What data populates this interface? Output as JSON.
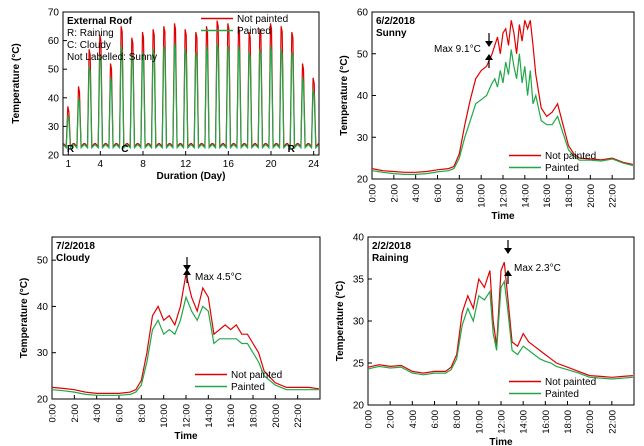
{
  "colors": {
    "not_painted": "#e00000",
    "painted": "#20a848",
    "axis": "#000000"
  },
  "chart_data": [
    {
      "id": "external-roof",
      "type": "line",
      "title": "External Roof",
      "subtitle_lines": [
        "R: Raining",
        "C: Cloudy",
        "Not Labelled: Sunny"
      ],
      "xlabel": "Duration (Day)",
      "ylabel": "Temperature (°C)",
      "xlim": [
        0.5,
        24.5
      ],
      "ylim": [
        20,
        70
      ],
      "xticks": [
        1,
        4,
        8,
        12,
        16,
        20,
        24
      ],
      "yticks": [
        20,
        30,
        40,
        50,
        60,
        70
      ],
      "legend": "top-right",
      "day_marks": [
        {
          "day": 1.2,
          "label": "R"
        },
        {
          "day": 6.3,
          "label": "C"
        },
        {
          "day": 21.9,
          "label": "R"
        }
      ],
      "daily_peaks": {
        "not_painted": [
          37,
          44,
          57,
          62,
          52,
          65,
          61,
          63,
          64,
          65,
          66,
          64,
          63,
          65,
          67,
          66,
          65,
          63,
          64,
          66,
          65,
          63,
          52,
          47
        ],
        "painted": [
          34,
          40,
          51,
          55,
          47,
          58,
          55,
          56,
          57,
          58,
          59,
          57,
          56,
          58,
          59,
          58,
          58,
          56,
          57,
          58,
          57,
          56,
          47,
          43
        ]
      },
      "night_min": 23,
      "series": [
        {
          "name": "Not painted",
          "color_key": "not_painted"
        },
        {
          "name": "Painted",
          "color_key": "painted"
        }
      ]
    },
    {
      "id": "sunny-6-2-2018",
      "type": "line",
      "title": "6/2/2018",
      "subtitle": "Sunny",
      "xlabel": "Time",
      "ylabel": "Temperature (°C)",
      "ylim": [
        20,
        60
      ],
      "yticks": [
        20,
        30,
        40,
        50,
        60
      ],
      "xticks": [
        "0:00",
        "2:00",
        "4:00",
        "6:00",
        "8:00",
        "10:00",
        "12:00",
        "14:00",
        "16:00",
        "18:00",
        "20:00",
        "22:00"
      ],
      "annotation": "Max 9.1°C",
      "legend": "bottom-right",
      "series": [
        {
          "name": "Not painted",
          "color_key": "not_painted",
          "x": [
            0,
            1,
            2,
            3,
            4,
            5,
            6,
            7,
            7.5,
            8,
            8.5,
            9,
            9.5,
            10,
            10.5,
            11,
            11.25,
            11.5,
            11.75,
            12,
            12.25,
            12.5,
            12.75,
            13,
            13.25,
            13.5,
            13.75,
            14,
            14.25,
            14.5,
            14.75,
            15,
            15.5,
            16,
            16.5,
            17,
            17.5,
            18,
            18.5,
            19,
            20,
            21,
            22,
            23,
            23.9
          ],
          "y": [
            22.5,
            22,
            21.8,
            21.6,
            21.6,
            21.8,
            22.2,
            22.5,
            23,
            26,
            33,
            39,
            44,
            46,
            47,
            50,
            52,
            54,
            50,
            55,
            56,
            52,
            58,
            55,
            50,
            57,
            53,
            58,
            56,
            58,
            52,
            45,
            37,
            35,
            36,
            38,
            33,
            28,
            26,
            25,
            24.8,
            24.6,
            25,
            24,
            23.5
          ]
        },
        {
          "name": "Painted",
          "color_key": "painted",
          "x": [
            0,
            1,
            2,
            3,
            4,
            5,
            6,
            7,
            7.5,
            8,
            8.5,
            9,
            9.5,
            10,
            10.5,
            11,
            11.25,
            11.5,
            11.75,
            12,
            12.25,
            12.5,
            12.75,
            13,
            13.25,
            13.5,
            13.75,
            14,
            14.25,
            14.5,
            14.75,
            15,
            15.5,
            16,
            16.5,
            17,
            17.5,
            18,
            18.5,
            19,
            20,
            21,
            22,
            23,
            23.9
          ],
          "y": [
            22,
            21.6,
            21.3,
            21.1,
            21.1,
            21.3,
            21.7,
            22,
            22.5,
            25,
            30,
            34,
            38,
            39,
            40,
            43,
            44,
            42,
            46,
            43,
            48,
            45,
            51,
            47,
            44,
            50,
            43,
            47,
            40,
            46,
            38,
            40,
            34,
            33,
            33,
            35,
            31,
            27,
            25.5,
            24.5,
            24.5,
            24.3,
            24.8,
            23.8,
            23.2
          ]
        }
      ]
    },
    {
      "id": "cloudy-7-2-2018",
      "type": "line",
      "title": "7/2/2018",
      "subtitle": "Cloudy",
      "xlabel": "Time",
      "ylabel": "Temperature (°C)",
      "ylim": [
        20,
        55
      ],
      "yticks": [
        20,
        30,
        40,
        50
      ],
      "xticks": [
        "0:00",
        "2:00",
        "4:00",
        "6:00",
        "8:00",
        "10:00",
        "12:00",
        "14:00",
        "16:00",
        "18:00",
        "20:00",
        "22:00"
      ],
      "annotation": "Max 4.5°C",
      "legend": "bottom-right",
      "series": [
        {
          "name": "Not painted",
          "color_key": "not_painted",
          "x": [
            0,
            1,
            2,
            3,
            4,
            5,
            6,
            7,
            7.5,
            8,
            8.5,
            9,
            9.5,
            10,
            10.5,
            11,
            11.5,
            12,
            12.5,
            13,
            13.5,
            14,
            14.5,
            15,
            15.5,
            16,
            16.5,
            17,
            17.5,
            18,
            18.5,
            19,
            20,
            21,
            22,
            23,
            23.9
          ],
          "y": [
            22.5,
            22.3,
            22,
            21.5,
            21.2,
            21.2,
            21.2,
            21.5,
            22,
            24,
            30,
            38,
            40,
            37,
            38,
            36,
            40,
            47,
            42,
            39,
            44,
            42,
            34,
            35,
            36,
            35,
            36,
            34,
            34,
            32,
            30,
            26,
            23.5,
            22.5,
            22.5,
            22.5,
            22.2
          ]
        },
        {
          "name": "Painted",
          "color_key": "painted",
          "x": [
            0,
            1,
            2,
            3,
            4,
            5,
            6,
            7,
            7.5,
            8,
            8.5,
            9,
            9.5,
            10,
            10.5,
            11,
            11.5,
            12,
            12.5,
            13,
            13.5,
            14,
            14.5,
            15,
            15.5,
            16,
            16.5,
            17,
            17.5,
            18,
            18.5,
            19,
            20,
            21,
            22,
            23,
            23.9
          ],
          "y": [
            22,
            21.8,
            21.5,
            21,
            20.8,
            20.8,
            20.8,
            21,
            21.5,
            23,
            28,
            35,
            37,
            34,
            35,
            34,
            37,
            42,
            39,
            37,
            40,
            39,
            32,
            33,
            33,
            33,
            33,
            32,
            32,
            30,
            28,
            25,
            23,
            22,
            22,
            22,
            22
          ]
        }
      ]
    },
    {
      "id": "raining-2-2-2018",
      "type": "line",
      "title": "2/2/2018",
      "subtitle": "Raining",
      "xlabel": "Time",
      "ylabel": "Temperature (°C)",
      "ylim": [
        20,
        40
      ],
      "yticks": [
        20,
        25,
        30,
        35,
        40
      ],
      "xticks": [
        "0:00",
        "2:00",
        "4:00",
        "6:00",
        "8:00",
        "10:00",
        "12:00",
        "14:00",
        "16:00",
        "18:00",
        "20:00",
        "22:00"
      ],
      "annotation": "Max 2.3°C",
      "legend": "bottom-right",
      "series": [
        {
          "name": "Not painted",
          "color_key": "not_painted",
          "x": [
            0,
            1,
            2,
            3,
            4,
            5,
            6,
            7,
            7.5,
            8,
            8.5,
            9,
            9.5,
            10,
            10.5,
            11,
            11.3,
            11.6,
            12,
            12.3,
            12.6,
            13,
            13.5,
            14,
            14.5,
            15,
            15.5,
            16,
            16.5,
            17,
            18,
            19,
            20,
            21,
            22,
            23,
            23.9
          ],
          "y": [
            24.5,
            24.8,
            24.6,
            24.7,
            24,
            23.8,
            24,
            24,
            24.5,
            26,
            31,
            33,
            31.5,
            35,
            34,
            36,
            30,
            27,
            36,
            37,
            33,
            27.5,
            27,
            28.5,
            27.5,
            27,
            26.5,
            26,
            25.5,
            25,
            24.5,
            24,
            23.5,
            23.4,
            23.3,
            23.4,
            23.5
          ]
        },
        {
          "name": "Painted",
          "color_key": "painted",
          "x": [
            0,
            1,
            2,
            3,
            4,
            5,
            6,
            7,
            7.5,
            8,
            8.5,
            9,
            9.5,
            10,
            10.5,
            11,
            11.3,
            11.6,
            12,
            12.3,
            12.6,
            13,
            13.5,
            14,
            14.5,
            15,
            15.5,
            16,
            16.5,
            17,
            18,
            19,
            20,
            21,
            22,
            23,
            23.9
          ],
          "y": [
            24.3,
            24.6,
            24.4,
            24.5,
            23.8,
            23.6,
            23.8,
            23.8,
            24.2,
            25.5,
            29.5,
            31.5,
            30,
            33,
            32.5,
            33.5,
            28.5,
            26.5,
            34,
            34.7,
            31.5,
            26.5,
            26,
            27,
            26.5,
            26,
            25.5,
            25.2,
            25,
            24.6,
            24.2,
            23.8,
            23.3,
            23.2,
            23.1,
            23.2,
            23.3
          ]
        }
      ]
    }
  ]
}
